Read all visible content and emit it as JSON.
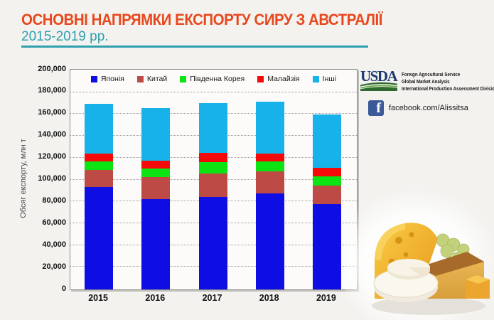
{
  "slide": {
    "title": "ОСНОВНІ НАПРЯМКИ ЕКСПОРТУ СИРУ З АВСТРАЛІЇ",
    "subtitle": "2015-2019 рр.",
    "title_color": "#E8481E",
    "accent_color": "#2EA0AF",
    "background_color": "#F3F2EF"
  },
  "chart_data": {
    "type": "bar",
    "stacked": true,
    "categories": [
      "2015",
      "2016",
      "2017",
      "2018",
      "2019"
    ],
    "series": [
      {
        "name": "Японія",
        "color": "#0D0DE4",
        "values": [
          94000,
          83000,
          85000,
          88000,
          78000
        ]
      },
      {
        "name": "Китай",
        "color": "#BE4A45",
        "values": [
          15500,
          20000,
          21000,
          20000,
          17000
        ]
      },
      {
        "name": "Південна Корея",
        "color": "#0BE312",
        "values": [
          7500,
          8000,
          10500,
          9500,
          8500
        ]
      },
      {
        "name": "Малайзія",
        "color": "#F50A0A",
        "values": [
          7500,
          7000,
          8500,
          7000,
          8000
        ]
      },
      {
        "name": "Інші",
        "color": "#16B2E9",
        "values": [
          45500,
          48000,
          46000,
          47500,
          48500
        ]
      }
    ],
    "totals": [
      170000,
      166000,
      171000,
      172000,
      160000
    ],
    "xlabel": "",
    "ylabel": "Обсяг експорту, млн т",
    "ylim": [
      0,
      200000
    ],
    "ytick_step": 20000,
    "ytick_labels": [
      "200,000",
      "180,000",
      "160,000",
      "140,000",
      "120,000",
      "100,000",
      "80,000",
      "60,000",
      "40,000",
      "20,000",
      "0"
    ],
    "grid": "horizontal-dotted",
    "legend_position": "top-inside",
    "plot_background": "#FCFBF9"
  },
  "branding": {
    "usda_logo_text": "USDA",
    "usda_lines": [
      "Foreign Agricultural Service",
      "Global Market Analysis",
      "International Production Assessment Division"
    ],
    "usda_navy": "#1E3A6E",
    "usda_green": "#2E6930",
    "facebook_text": "facebook.com/Alissitsa",
    "facebook_color": "#3B5998"
  }
}
